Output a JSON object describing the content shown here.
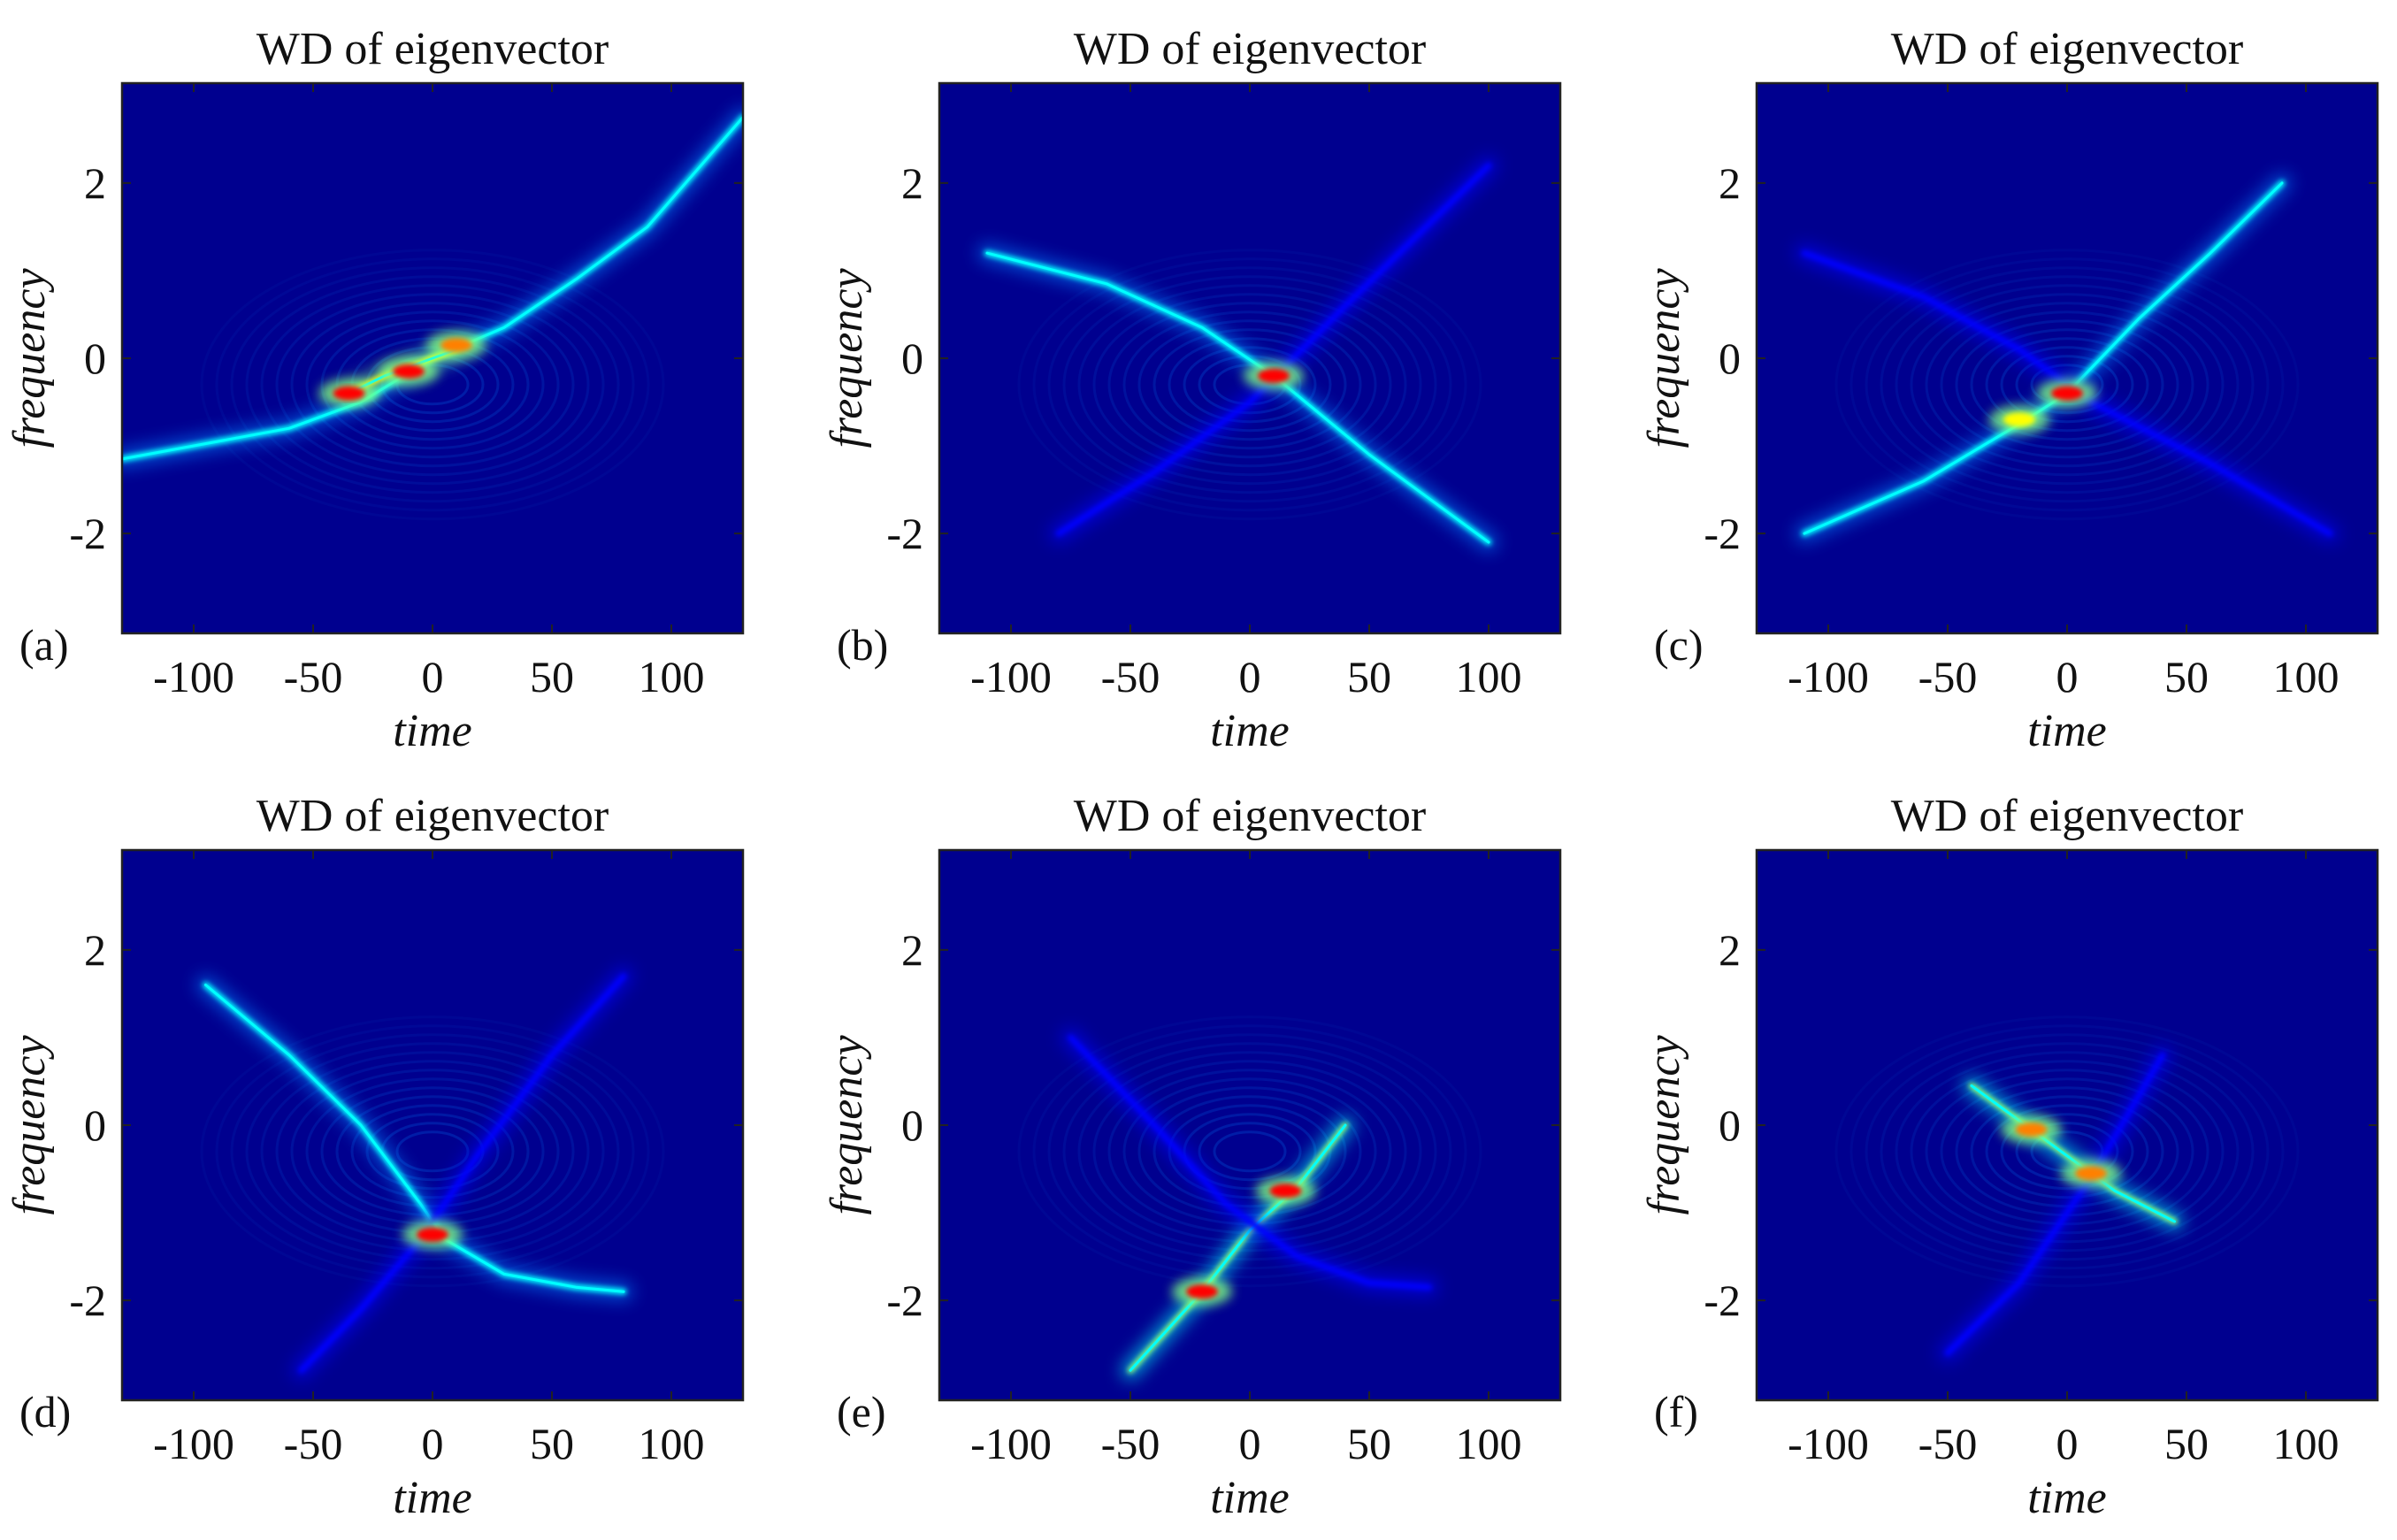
{
  "figure": {
    "background_color": "#00008f",
    "colormap": "jet",
    "colormap_colors": [
      "#00008f",
      "#0000ff",
      "#0080ff",
      "#00ffff",
      "#80ff80",
      "#ffff00",
      "#ff8000",
      "#ff0000",
      "#800000"
    ]
  },
  "chart_data": [
    {
      "type": "heatmap",
      "panel_label": "(a)",
      "title": "WD of eigenvector",
      "xlabel": "time",
      "ylabel": "frequency",
      "xlim": [
        -130,
        130
      ],
      "ylim": [
        -3.14,
        3.14
      ],
      "xticks": [
        -100,
        -50,
        0,
        50,
        100
      ],
      "yticks": [
        -2,
        0,
        2
      ],
      "xtick_labels": [
        "-100",
        "-50",
        "0",
        "50",
        "100"
      ],
      "ytick_labels": [
        "-2",
        "0",
        "2"
      ],
      "ridges": [
        {
          "t": [
            -130,
            -60,
            -30,
            0,
            30,
            60,
            90,
            130
          ],
          "f": [
            -1.15,
            -0.8,
            -0.5,
            0.0,
            0.35,
            0.9,
            1.5,
            2.75
          ],
          "intensity": 0.6
        },
        {
          "t": [
            -35,
            -20,
            -5,
            10
          ],
          "f": [
            -0.4,
            -0.2,
            -0.05,
            0.1
          ],
          "intensity": 1.0
        }
      ],
      "hotspots": [
        {
          "t": -35,
          "f": -0.4,
          "intensity": 1.0
        },
        {
          "t": -10,
          "f": -0.15,
          "intensity": 0.95
        },
        {
          "t": 10,
          "f": 0.15,
          "intensity": 0.8
        }
      ]
    },
    {
      "type": "heatmap",
      "panel_label": "(b)",
      "title": "WD of eigenvector",
      "xlabel": "time",
      "ylabel": "frequency",
      "xlim": [
        -130,
        130
      ],
      "ylim": [
        -3.14,
        3.14
      ],
      "xticks": [
        -100,
        -50,
        0,
        50,
        100
      ],
      "yticks": [
        -2,
        0,
        2
      ],
      "xtick_labels": [
        "-100",
        "-50",
        "0",
        "50",
        "100"
      ],
      "ytick_labels": [
        "-2",
        "0",
        "2"
      ],
      "ridges": [
        {
          "t": [
            -110,
            -60,
            -20,
            10,
            50,
            100
          ],
          "f": [
            1.2,
            0.85,
            0.35,
            -0.2,
            -1.1,
            -2.1
          ],
          "intensity": 0.6
        },
        {
          "t": [
            -80,
            -40,
            0,
            40,
            100
          ],
          "f": [
            -2.0,
            -1.3,
            -0.5,
            0.6,
            2.2
          ],
          "intensity": 0.3
        }
      ],
      "hotspots": [
        {
          "t": 10,
          "f": -0.2,
          "intensity": 1.0
        }
      ]
    },
    {
      "type": "heatmap",
      "panel_label": "(c)",
      "title": "WD of eigenvector",
      "xlabel": "time",
      "ylabel": "frequency",
      "xlim": [
        -130,
        130
      ],
      "ylim": [
        -3.14,
        3.14
      ],
      "xticks": [
        -100,
        -50,
        0,
        50,
        100
      ],
      "yticks": [
        -2,
        0,
        2
      ],
      "xtick_labels": [
        "-100",
        "-50",
        "0",
        "50",
        "100"
      ],
      "ytick_labels": [
        "-2",
        "0",
        "2"
      ],
      "ridges": [
        {
          "t": [
            -110,
            -60,
            -20,
            0,
            30,
            60,
            90
          ],
          "f": [
            -2.0,
            -1.4,
            -0.75,
            -0.4,
            0.45,
            1.2,
            2.0
          ],
          "intensity": 0.65
        },
        {
          "t": [
            -110,
            -60,
            -20,
            10,
            60,
            110
          ],
          "f": [
            1.2,
            0.7,
            0.1,
            -0.5,
            -1.2,
            -2.0
          ],
          "intensity": 0.3
        }
      ],
      "hotspots": [
        {
          "t": 0,
          "f": -0.4,
          "intensity": 0.95
        },
        {
          "t": -20,
          "f": -0.7,
          "intensity": 0.7
        }
      ]
    },
    {
      "type": "heatmap",
      "panel_label": "(d)",
      "title": "WD of eigenvector",
      "xlabel": "time",
      "ylabel": "frequency",
      "xlim": [
        -130,
        130
      ],
      "ylim": [
        -3.14,
        3.14
      ],
      "xticks": [
        -100,
        -50,
        0,
        50,
        100
      ],
      "yticks": [
        -2,
        0,
        2
      ],
      "xtick_labels": [
        "-100",
        "-50",
        "0",
        "50",
        "100"
      ],
      "ytick_labels": [
        "-2",
        "0",
        "2"
      ],
      "ridges": [
        {
          "t": [
            -95,
            -60,
            -30,
            -5,
            5,
            30,
            60,
            80
          ],
          "f": [
            1.6,
            0.8,
            0.0,
            -0.9,
            -1.3,
            -1.7,
            -1.85,
            -1.9
          ],
          "intensity": 0.6
        },
        {
          "t": [
            -55,
            -30,
            -5,
            20,
            50,
            80
          ],
          "f": [
            -2.8,
            -2.1,
            -1.3,
            -0.3,
            0.8,
            1.7
          ],
          "intensity": 0.3
        }
      ],
      "hotspots": [
        {
          "t": 0,
          "f": -1.25,
          "intensity": 1.0
        }
      ]
    },
    {
      "type": "heatmap",
      "panel_label": "(e)",
      "title": "WD of eigenvector",
      "xlabel": "time",
      "ylabel": "frequency",
      "xlim": [
        -130,
        130
      ],
      "ylim": [
        -3.14,
        3.14
      ],
      "xticks": [
        -100,
        -50,
        0,
        50,
        100
      ],
      "yticks": [
        -2,
        0,
        2
      ],
      "xtick_labels": [
        "-100",
        "-50",
        "0",
        "50",
        "100"
      ],
      "ytick_labels": [
        "-2",
        "0",
        "2"
      ],
      "ridges": [
        {
          "t": [
            -50,
            -20,
            0,
            20,
            40
          ],
          "f": [
            -2.8,
            -1.9,
            -1.2,
            -0.7,
            0.0
          ],
          "intensity": 0.9
        },
        {
          "t": [
            -75,
            -40,
            -10,
            20,
            50,
            75
          ],
          "f": [
            1.0,
            0.0,
            -0.9,
            -1.5,
            -1.8,
            -1.85
          ],
          "intensity": 0.3
        }
      ],
      "hotspots": [
        {
          "t": -20,
          "f": -1.9,
          "intensity": 1.0
        },
        {
          "t": 15,
          "f": -0.75,
          "intensity": 0.95
        }
      ]
    },
    {
      "type": "heatmap",
      "panel_label": "(f)",
      "title": "WD of eigenvector",
      "xlabel": "time",
      "ylabel": "frequency",
      "xlim": [
        -130,
        130
      ],
      "ylim": [
        -3.14,
        3.14
      ],
      "xticks": [
        -100,
        -50,
        0,
        50,
        100
      ],
      "yticks": [
        -2,
        0,
        2
      ],
      "xtick_labels": [
        "-100",
        "-50",
        "0",
        "50",
        "100"
      ],
      "ytick_labels": [
        "-2",
        "0",
        "2"
      ],
      "ridges": [
        {
          "t": [
            -40,
            -20,
            0,
            20,
            45
          ],
          "f": [
            0.45,
            0.05,
            -0.35,
            -0.75,
            -1.1
          ],
          "intensity": 0.85
        },
        {
          "t": [
            -50,
            -20,
            10,
            40
          ],
          "f": [
            -2.6,
            -1.8,
            -0.6,
            0.8
          ],
          "intensity": 0.25
        }
      ],
      "hotspots": [
        {
          "t": -15,
          "f": -0.05,
          "intensity": 0.8
        },
        {
          "t": 10,
          "f": -0.55,
          "intensity": 0.9
        }
      ]
    }
  ]
}
